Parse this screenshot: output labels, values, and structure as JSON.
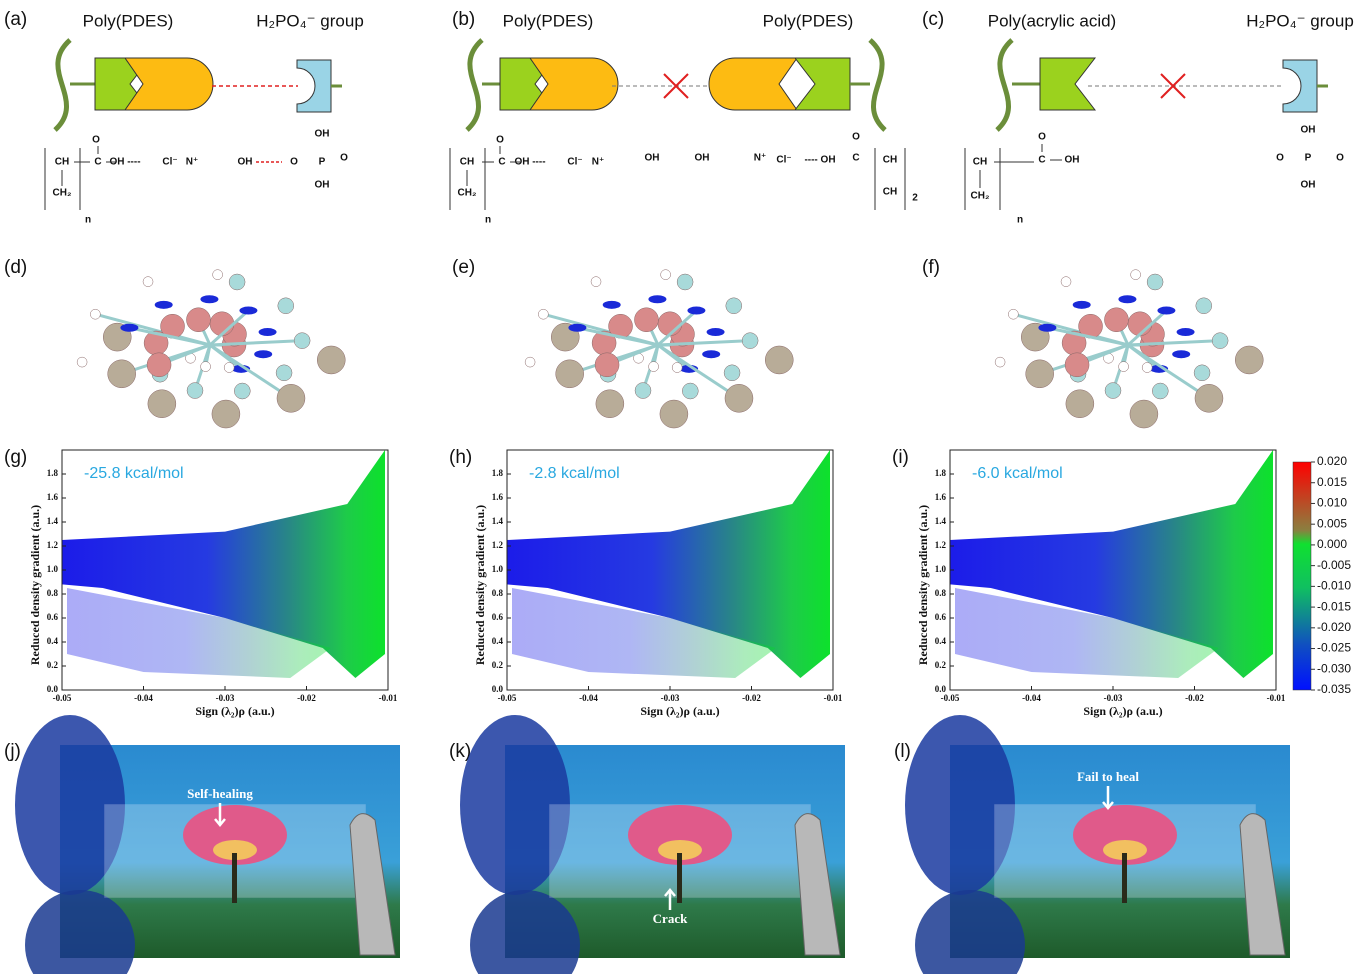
{
  "schemes": [
    {
      "label": "(a)",
      "titles": [
        "Poly(PDES)",
        "H₂PO₄⁻  group"
      ],
      "chem": [
        "CH",
        "C",
        "OH ----",
        "Cl⁻",
        "N⁺",
        "OH",
        "O",
        "P",
        "O",
        "OH",
        "OH",
        "CH₂",
        "O",
        "n"
      ]
    },
    {
      "label": "(b)",
      "titles": [
        "Poly(PDES)",
        "Poly(PDES)"
      ],
      "chem": [
        "CH",
        "C",
        "OH ----",
        "Cl⁻",
        "N⁺",
        "OH",
        "OH",
        "N⁺",
        "Cl⁻",
        "---- OH",
        "C",
        "CH",
        "CH",
        "2",
        "CH₂",
        "O",
        "O",
        "n"
      ]
    },
    {
      "label": "(c)",
      "titles": [
        "Poly(acrylic acid)",
        "H₂PO₄⁻  group"
      ],
      "chem": [
        "CH",
        "C",
        "OH",
        "CH₂",
        "O",
        "n",
        "O",
        "P",
        "O",
        "OH",
        "OH"
      ]
    }
  ],
  "molecules": [
    "(d)",
    "(e)",
    "(f)"
  ],
  "plots": [
    {
      "label": "(g)",
      "annotation": "-25.8 kcal/mol"
    },
    {
      "label": "(h)",
      "annotation": "-2.8 kcal/mol"
    },
    {
      "label": "(i)",
      "annotation": "-6.0 kcal/mol"
    }
  ],
  "plot_axes": {
    "xlabel": "Sign (λ₂)ρ (a.u.)",
    "ylabel": "Reduced density gradient (a.u.)",
    "xlim": [
      -0.05,
      -0.01
    ],
    "ylim": [
      0,
      2
    ],
    "xticks": [
      -0.05,
      -0.04,
      -0.03,
      -0.02,
      -0.01
    ],
    "yticks": [
      {
        "value": 0,
        "label": "0.0"
      },
      0.2,
      0.4,
      0.6,
      0.8,
      {
        "value": 1,
        "label": "1.0"
      },
      1.2,
      1.4,
      1.6,
      1.8
    ]
  },
  "colorbar": {
    "lim": [
      -0.035,
      0.02
    ],
    "ticks": [
      {
        "value": 0.02,
        "label": "0.020"
      },
      0.015,
      {
        "value": 0.01,
        "label": "0.010"
      },
      0.005,
      {
        "value": 0,
        "label": "0.000"
      },
      -0.005,
      {
        "value": -0.01,
        "label": "-0.010"
      },
      -0.015,
      {
        "value": -0.02,
        "label": "-0.020"
      },
      -0.025,
      {
        "value": -0.03,
        "label": "-0.030"
      },
      -0.035
    ]
  },
  "photos": [
    {
      "label": "(j)",
      "caption": "Self-healing"
    },
    {
      "label": "(k)",
      "caption": "Crack"
    },
    {
      "label": "(l)",
      "caption": "Fail to heal"
    }
  ]
}
